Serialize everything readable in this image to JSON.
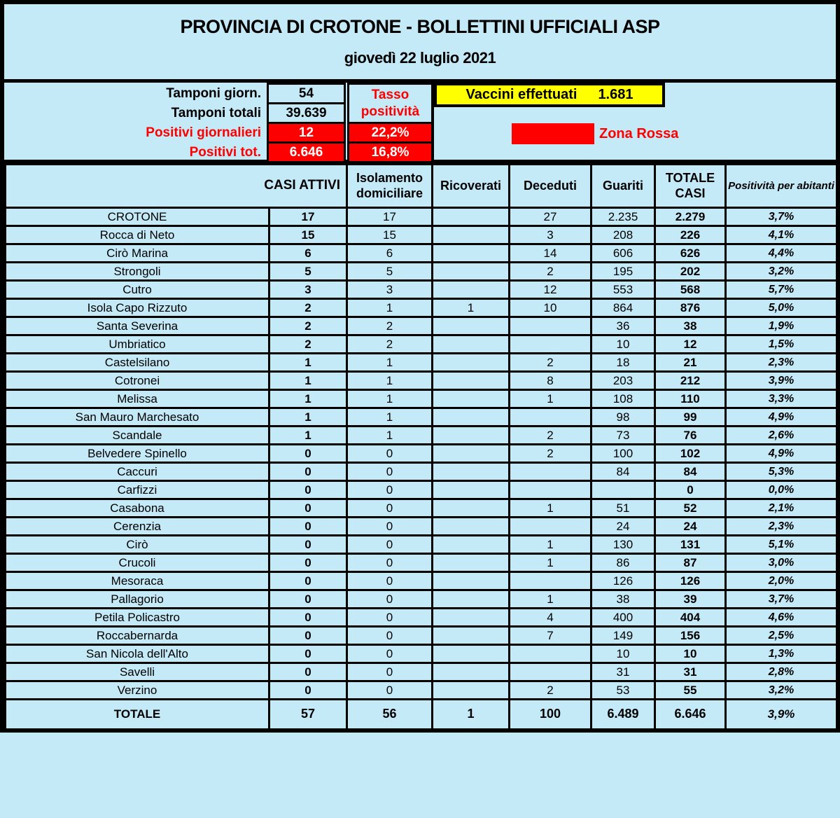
{
  "colors": {
    "background": "#c4e9f7",
    "alert_red": "#ff0000",
    "vaccine_yellow": "#ffff00",
    "border_black": "#000000"
  },
  "header": {
    "title": "PROVINCIA DI CROTONE - BOLLETTINI UFFICIALI ASP",
    "date": "giovedì 22 luglio 2021"
  },
  "stats": {
    "rows": [
      {
        "label": "Tamponi giorn.",
        "value": "54"
      },
      {
        "label": "Tamponi totali",
        "value": "39.639"
      },
      {
        "label": "Positivi giornalieri",
        "value": "12"
      },
      {
        "label": "Positivi tot.",
        "value": "6.646"
      }
    ],
    "tasso": {
      "title": "Tasso positività",
      "values": [
        "22,2%",
        "16,8%"
      ]
    },
    "vaccini": {
      "label": "Vaccini effettuati",
      "value": "1.681"
    },
    "zona_rossa": {
      "label": "Zona Rossa"
    }
  },
  "table": {
    "corner_header": "CASI ATTIVI",
    "col_headers": [
      "Isolamento domiciliare",
      "Ricoverati",
      "Deceduti",
      "Guariti",
      "TOTALE CASI",
      "Positività per abitanti"
    ],
    "rows": [
      {
        "name": "CROTONE",
        "attivi": "17",
        "isolamento": "17",
        "ricoverati": "",
        "deceduti": "27",
        "guariti": "2.235",
        "totale": "2.279",
        "positivita": "3,7%"
      },
      {
        "name": "Rocca di Neto",
        "attivi": "15",
        "isolamento": "15",
        "ricoverati": "",
        "deceduti": "3",
        "guariti": "208",
        "totale": "226",
        "positivita": "4,1%"
      },
      {
        "name": "Cirò Marina",
        "attivi": "6",
        "isolamento": "6",
        "ricoverati": "",
        "deceduti": "14",
        "guariti": "606",
        "totale": "626",
        "positivita": "4,4%"
      },
      {
        "name": "Strongoli",
        "attivi": "5",
        "isolamento": "5",
        "ricoverati": "",
        "deceduti": "2",
        "guariti": "195",
        "totale": "202",
        "positivita": "3,2%"
      },
      {
        "name": "Cutro",
        "attivi": "3",
        "isolamento": "3",
        "ricoverati": "",
        "deceduti": "12",
        "guariti": "553",
        "totale": "568",
        "positivita": "5,7%"
      },
      {
        "name": "Isola Capo Rizzuto",
        "attivi": "2",
        "isolamento": "1",
        "ricoverati": "1",
        "deceduti": "10",
        "guariti": "864",
        "totale": "876",
        "positivita": "5,0%"
      },
      {
        "name": "Santa Severina",
        "attivi": "2",
        "isolamento": "2",
        "ricoverati": "",
        "deceduti": "",
        "guariti": "36",
        "totale": "38",
        "positivita": "1,9%"
      },
      {
        "name": "Umbriatico",
        "attivi": "2",
        "isolamento": "2",
        "ricoverati": "",
        "deceduti": "",
        "guariti": "10",
        "totale": "12",
        "positivita": "1,5%"
      },
      {
        "name": "Castelsilano",
        "attivi": "1",
        "isolamento": "1",
        "ricoverati": "",
        "deceduti": "2",
        "guariti": "18",
        "totale": "21",
        "positivita": "2,3%"
      },
      {
        "name": "Cotronei",
        "attivi": "1",
        "isolamento": "1",
        "ricoverati": "",
        "deceduti": "8",
        "guariti": "203",
        "totale": "212",
        "positivita": "3,9%"
      },
      {
        "name": "Melissa",
        "attivi": "1",
        "isolamento": "1",
        "ricoverati": "",
        "deceduti": "1",
        "guariti": "108",
        "totale": "110",
        "positivita": "3,3%"
      },
      {
        "name": "San Mauro Marchesato",
        "attivi": "1",
        "isolamento": "1",
        "ricoverati": "",
        "deceduti": "",
        "guariti": "98",
        "totale": "99",
        "positivita": "4,9%"
      },
      {
        "name": "Scandale",
        "attivi": "1",
        "isolamento": "1",
        "ricoverati": "",
        "deceduti": "2",
        "guariti": "73",
        "totale": "76",
        "positivita": "2,6%"
      },
      {
        "name": "Belvedere Spinello",
        "attivi": "0",
        "isolamento": "0",
        "ricoverati": "",
        "deceduti": "2",
        "guariti": "100",
        "totale": "102",
        "positivita": "4,9%"
      },
      {
        "name": "Caccuri",
        "attivi": "0",
        "isolamento": "0",
        "ricoverati": "",
        "deceduti": "",
        "guariti": "84",
        "totale": "84",
        "positivita": "5,3%"
      },
      {
        "name": "Carfizzi",
        "attivi": "0",
        "isolamento": "0",
        "ricoverati": "",
        "deceduti": "",
        "guariti": "",
        "totale": "0",
        "positivita": "0,0%"
      },
      {
        "name": "Casabona",
        "attivi": "0",
        "isolamento": "0",
        "ricoverati": "",
        "deceduti": "1",
        "guariti": "51",
        "totale": "52",
        "positivita": "2,1%"
      },
      {
        "name": "Cerenzia",
        "attivi": "0",
        "isolamento": "0",
        "ricoverati": "",
        "deceduti": "",
        "guariti": "24",
        "totale": "24",
        "positivita": "2,3%"
      },
      {
        "name": "Cirò",
        "attivi": "0",
        "isolamento": "0",
        "ricoverati": "",
        "deceduti": "1",
        "guariti": "130",
        "totale": "131",
        "positivita": "5,1%"
      },
      {
        "name": "Crucoli",
        "attivi": "0",
        "isolamento": "0",
        "ricoverati": "",
        "deceduti": "1",
        "guariti": "86",
        "totale": "87",
        "positivita": "3,0%"
      },
      {
        "name": "Mesoraca",
        "attivi": "0",
        "isolamento": "0",
        "ricoverati": "",
        "deceduti": "",
        "guariti": "126",
        "totale": "126",
        "positivita": "2,0%"
      },
      {
        "name": "Pallagorio",
        "attivi": "0",
        "isolamento": "0",
        "ricoverati": "",
        "deceduti": "1",
        "guariti": "38",
        "totale": "39",
        "positivita": "3,7%"
      },
      {
        "name": "Petila Policastro",
        "attivi": "0",
        "isolamento": "0",
        "ricoverati": "",
        "deceduti": "4",
        "guariti": "400",
        "totale": "404",
        "positivita": "4,6%"
      },
      {
        "name": "Roccabernarda",
        "attivi": "0",
        "isolamento": "0",
        "ricoverati": "",
        "deceduti": "7",
        "guariti": "149",
        "totale": "156",
        "positivita": "2,5%"
      },
      {
        "name": "San Nicola dell'Alto",
        "attivi": "0",
        "isolamento": "0",
        "ricoverati": "",
        "deceduti": "",
        "guariti": "10",
        "totale": "10",
        "positivita": "1,3%"
      },
      {
        "name": "Savelli",
        "attivi": "0",
        "isolamento": "0",
        "ricoverati": "",
        "deceduti": "",
        "guariti": "31",
        "totale": "31",
        "positivita": "2,8%"
      },
      {
        "name": "Verzino",
        "attivi": "0",
        "isolamento": "0",
        "ricoverati": "",
        "deceduti": "2",
        "guariti": "53",
        "totale": "55",
        "positivita": "3,2%"
      }
    ],
    "total_row": {
      "name": "TOTALE",
      "attivi": "57",
      "isolamento": "56",
      "ricoverati": "1",
      "deceduti": "100",
      "guariti": "6.489",
      "totale": "6.646",
      "positivita": "3,9%"
    }
  }
}
